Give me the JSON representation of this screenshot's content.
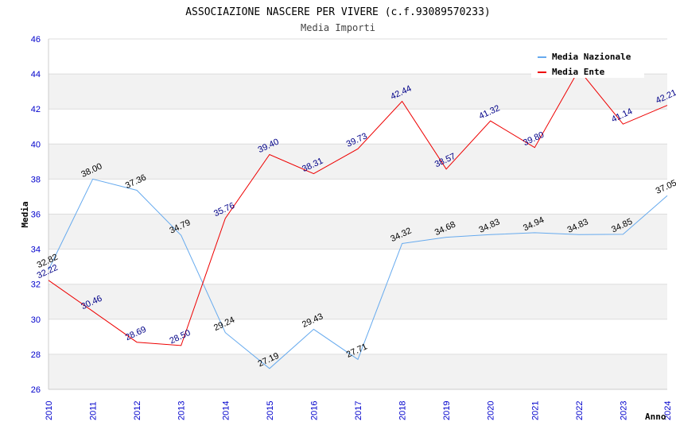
{
  "header": {
    "title": "ASSOCIAZIONE NASCERE PER VIVERE (c.f.93089570233)",
    "subtitle": "Media Importi"
  },
  "chart_data": {
    "type": "line",
    "title": "ASSOCIAZIONE NASCERE PER VIVERE (c.f.93089570233)",
    "subtitle": "Media Importi",
    "xlabel": "Anno",
    "ylabel": "Media",
    "x": [
      "2010",
      "2011",
      "2012",
      "2013",
      "2014",
      "2015",
      "2016",
      "2017",
      "2018",
      "2019",
      "2020",
      "2021",
      "2022",
      "2023",
      "2024"
    ],
    "ylim": [
      26,
      46
    ],
    "yticks": [
      26,
      28,
      30,
      32,
      34,
      36,
      38,
      40,
      42,
      44,
      46
    ],
    "grid": true,
    "legend_position": "top-right",
    "series": [
      {
        "name": "Media Nazionale",
        "color": "#66aaee",
        "label_color": "#000000",
        "values": [
          32.82,
          38.0,
          37.36,
          34.79,
          29.24,
          27.19,
          29.43,
          27.71,
          34.32,
          34.68,
          34.83,
          34.94,
          34.83,
          34.85,
          37.05
        ]
      },
      {
        "name": "Media Ente",
        "color": "#ee0000",
        "label_color": "#000088",
        "values": [
          32.22,
          30.46,
          28.69,
          28.5,
          35.76,
          39.4,
          38.31,
          39.73,
          42.44,
          38.57,
          41.32,
          39.8,
          44.24,
          41.14,
          42.21
        ]
      }
    ]
  }
}
